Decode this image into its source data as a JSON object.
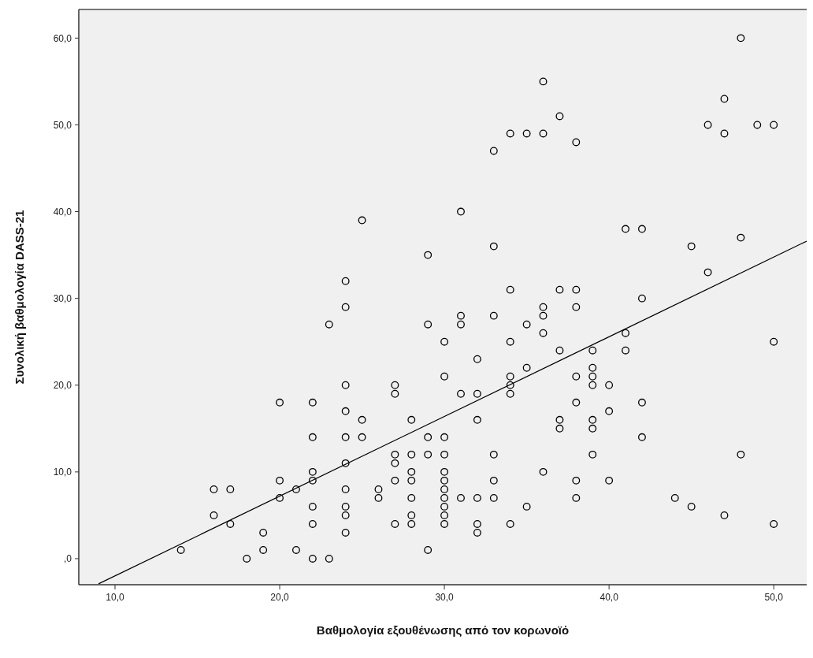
{
  "chart_data": {
    "type": "scatter",
    "xlabel": "Βαθμολογία εξουθένωσης από τον κορωνοϊό",
    "ylabel": "Συνολική βαθμολογία DASS-21",
    "xlim": [
      7.8,
      52
    ],
    "ylim": [
      -3,
      63.3
    ],
    "xticks": [
      {
        "value": 10,
        "label": "10,0"
      },
      {
        "value": 20,
        "label": "20,0"
      },
      {
        "value": 30,
        "label": "30,0"
      },
      {
        "value": 40,
        "label": "40,0"
      },
      {
        "value": 50,
        "label": "50,0"
      }
    ],
    "yticks": [
      {
        "value": 0,
        "label": ",0"
      },
      {
        "value": 10,
        "label": "10,0"
      },
      {
        "value": 20,
        "label": "20,0"
      },
      {
        "value": 30,
        "label": "30,0"
      },
      {
        "value": 40,
        "label": "40,0"
      },
      {
        "value": 50,
        "label": "50,0"
      },
      {
        "value": 60,
        "label": "60,0"
      }
    ],
    "grid": false,
    "series": [
      {
        "color": "#000000",
        "marker": "circle",
        "x": [
          14,
          16,
          16,
          17,
          17,
          18,
          19,
          19,
          20,
          20,
          20,
          21,
          21,
          22,
          22,
          22,
          22,
          22,
          22,
          22,
          23,
          23,
          24,
          24,
          24,
          24,
          24,
          24,
          24,
          24,
          24,
          24,
          25,
          25,
          25,
          26,
          26,
          27,
          27,
          27,
          27,
          27,
          27,
          28,
          28,
          28,
          28,
          28,
          28,
          28,
          29,
          29,
          29,
          29,
          29,
          30,
          30,
          30,
          30,
          30,
          30,
          30,
          30,
          30,
          30,
          30,
          31,
          31,
          31,
          31,
          31,
          32,
          32,
          32,
          32,
          32,
          32,
          33,
          33,
          33,
          33,
          33,
          33,
          34,
          34,
          34,
          34,
          34,
          34,
          34,
          35,
          35,
          35,
          35,
          36,
          36,
          36,
          36,
          36,
          36,
          37,
          37,
          37,
          37,
          37,
          38,
          38,
          38,
          38,
          38,
          38,
          38,
          39,
          39,
          39,
          39,
          39,
          39,
          39,
          40,
          40,
          40,
          41,
          41,
          41,
          42,
          42,
          42,
          42,
          44,
          45,
          45,
          46,
          46,
          47,
          47,
          47,
          48,
          48,
          48,
          49,
          50,
          50,
          50
        ],
        "values": [
          1,
          8,
          5,
          8,
          4,
          0,
          3,
          1,
          18,
          9,
          7,
          8,
          1,
          18,
          14,
          10,
          9,
          6,
          4,
          0,
          27,
          0,
          32,
          29,
          20,
          17,
          14,
          11,
          8,
          6,
          5,
          3,
          39,
          16,
          14,
          8,
          7,
          20,
          19,
          12,
          11,
          9,
          4,
          16,
          12,
          10,
          9,
          7,
          5,
          4,
          35,
          27,
          14,
          12,
          1,
          25,
          21,
          14,
          12,
          10,
          9,
          8,
          7,
          6,
          5,
          4,
          40,
          28,
          27,
          19,
          7,
          23,
          19,
          16,
          7,
          4,
          3,
          47,
          36,
          28,
          12,
          9,
          7,
          49,
          31,
          25,
          21,
          20,
          19,
          4,
          49,
          27,
          22,
          6,
          55,
          49,
          29,
          28,
          26,
          10,
          51,
          31,
          24,
          16,
          15,
          48,
          31,
          29,
          21,
          18,
          9,
          7,
          24,
          22,
          21,
          20,
          16,
          15,
          12,
          20,
          17,
          9,
          38,
          26,
          24,
          38,
          30,
          18,
          14,
          7,
          36,
          6,
          50,
          33,
          53,
          49,
          5,
          60,
          37,
          12,
          50,
          50,
          25,
          4
        ]
      },
      {
        "type": "line",
        "color": "#000000",
        "line_style": "solid",
        "x": [
          9,
          52
        ],
        "values": [
          -2.9,
          36.6
        ]
      }
    ]
  }
}
